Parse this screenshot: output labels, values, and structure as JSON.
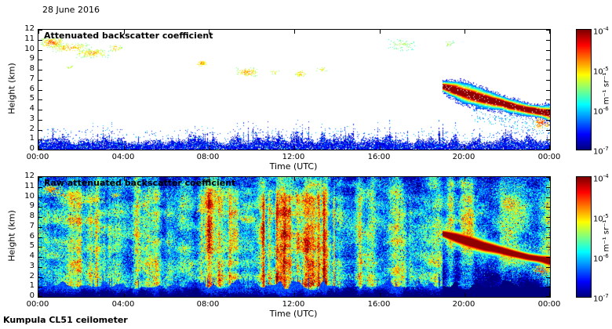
{
  "header": {
    "date": "28 June 2016"
  },
  "footer": {
    "label": "Kumpula CL51 ceilometer"
  },
  "colorbar": {
    "units": "m⁻¹ sr⁻¹",
    "exps": [
      -4,
      -5,
      -6,
      -7
    ],
    "scale": "log10",
    "range_log10": [
      -7,
      -4
    ]
  },
  "chart_data": [
    {
      "type": "heatmap",
      "panel": "top",
      "title": "Attenuated backscatter coefficient",
      "xlabel": "Time (UTC)",
      "ylabel": "Height (km)",
      "x_ticks": [
        "00:00",
        "04:00",
        "08:00",
        "12:00",
        "16:00",
        "20:00",
        "00:00"
      ],
      "y_ticks": [
        "0",
        "1",
        "2",
        "3",
        "4",
        "5",
        "6",
        "7",
        "8",
        "9",
        "10",
        "11",
        "12"
      ],
      "x_range_hours": [
        0,
        24
      ],
      "y_range_km": [
        0,
        12
      ],
      "value_range_log10": [
        -7,
        -4
      ],
      "background": "white",
      "boundary_layer": {
        "base_km": 0.75,
        "var_km": 1.1,
        "value_log10": [
          -6.8,
          -5.9
        ]
      },
      "clouds": [
        {
          "t0": 0.05,
          "t1": 1.2,
          "k0": 10.2,
          "k1": 11.3,
          "den": 0.6,
          "v0": -5.9,
          "v1": -4.4
        },
        {
          "t0": 0.4,
          "t1": 2.5,
          "k0": 9.7,
          "k1": 10.75,
          "den": 0.4,
          "v0": -5.9,
          "v1": -4.6
        },
        {
          "t0": 1.6,
          "t1": 3.35,
          "k0": 9.2,
          "k1": 10.2,
          "den": 0.35,
          "v0": -5.9,
          "v1": -4.7
        },
        {
          "t0": 3.3,
          "t1": 3.95,
          "k0": 9.8,
          "k1": 10.55,
          "den": 0.4,
          "v0": -5.8,
          "v1": -4.7
        },
        {
          "t0": 1.25,
          "t1": 1.7,
          "k0": 8.05,
          "k1": 8.5,
          "den": 0.35,
          "v0": -5.7,
          "v1": -5.0
        },
        {
          "t0": 7.35,
          "t1": 7.9,
          "k0": 8.3,
          "k1": 9.0,
          "den": 0.5,
          "v0": -5.6,
          "v1": -4.6
        },
        {
          "t0": 9.25,
          "t1": 10.35,
          "k0": 7.3,
          "k1": 8.3,
          "den": 0.45,
          "v0": -5.8,
          "v1": -4.6
        },
        {
          "t0": 10.85,
          "t1": 11.3,
          "k0": 7.5,
          "k1": 8.1,
          "den": 0.4,
          "v0": -5.7,
          "v1": -4.9
        },
        {
          "t0": 12.0,
          "t1": 12.55,
          "k0": 7.3,
          "k1": 8.0,
          "den": 0.45,
          "v0": -5.7,
          "v1": -4.7
        },
        {
          "t0": 13.0,
          "t1": 13.55,
          "k0": 7.75,
          "k1": 8.35,
          "den": 0.4,
          "v0": -5.8,
          "v1": -4.9
        },
        {
          "t0": 16.35,
          "t1": 17.75,
          "k0": 9.8,
          "k1": 11.25,
          "den": 0.2,
          "v0": -6.0,
          "v1": -5.2
        },
        {
          "t0": 19.0,
          "t1": 19.5,
          "k0": 10.3,
          "k1": 10.95,
          "den": 0.3,
          "v0": -5.9,
          "v1": -5.1
        },
        {
          "t0": 23.2,
          "t1": 24.0,
          "k0": 2.1,
          "k1": 3.3,
          "den": 0.55,
          "v0": -5.3,
          "v1": -4.4
        }
      ],
      "plume": {
        "hours": [
          18.95,
          19.6,
          20.2,
          20.9,
          21.6,
          22.3,
          23.0,
          23.6,
          24.01
        ],
        "center_km": [
          6.35,
          5.95,
          5.55,
          5.1,
          4.75,
          4.35,
          4.0,
          3.8,
          3.65
        ],
        "halfwidth_km": [
          0.55,
          0.95,
          1.05,
          0.95,
          0.8,
          0.7,
          0.65,
          0.7,
          0.9
        ],
        "peak_log10": -4.1
      }
    },
    {
      "type": "heatmap",
      "panel": "bottom",
      "title": "Raw attenuated backscatter coefficient",
      "xlabel": "Time (UTC)",
      "ylabel": "Height (km)",
      "x_ticks": [
        "00:00",
        "04:00",
        "08:00",
        "12:00",
        "16:00",
        "20:00",
        "00:00"
      ],
      "y_ticks": [
        "0",
        "1",
        "2",
        "3",
        "4",
        "5",
        "6",
        "7",
        "8",
        "9",
        "10",
        "11",
        "12"
      ],
      "x_range_hours": [
        0,
        24
      ],
      "y_range_km": [
        0,
        12
      ],
      "value_range_log10": [
        -7,
        -4
      ],
      "background": "noise",
      "noise": {
        "mean_log10": -5.8,
        "sd_log10": 0.5
      },
      "boundary_layer": {
        "base_km": 0.75,
        "var_km": 1.1,
        "value_log10": [
          -7.0,
          -6.2
        ]
      },
      "streak_regions": [
        [
          1.8,
          3.5,
          0.55
        ],
        [
          4.5,
          5.2,
          0.35
        ],
        [
          7.6,
          9.5,
          0.95
        ],
        [
          10.2,
          13.9,
          1.05
        ],
        [
          15.0,
          15.7,
          0.4
        ],
        [
          16.6,
          18.4,
          0.55
        ]
      ],
      "clouds": [
        {
          "t0": 0.05,
          "t1": 1.2,
          "k0": 10.2,
          "k1": 11.3,
          "den": 0.6,
          "v0": -5.9,
          "v1": -4.4
        },
        {
          "t0": 0.4,
          "t1": 2.5,
          "k0": 9.7,
          "k1": 10.75,
          "den": 0.4,
          "v0": -5.9,
          "v1": -4.6
        },
        {
          "t0": 1.6,
          "t1": 3.35,
          "k0": 9.2,
          "k1": 10.2,
          "den": 0.35,
          "v0": -5.9,
          "v1": -4.7
        },
        {
          "t0": 3.3,
          "t1": 3.95,
          "k0": 9.8,
          "k1": 10.55,
          "den": 0.4,
          "v0": -5.8,
          "v1": -4.7
        },
        {
          "t0": 7.35,
          "t1": 7.9,
          "k0": 8.3,
          "k1": 9.0,
          "den": 0.5,
          "v0": -5.6,
          "v1": -4.6
        },
        {
          "t0": 9.25,
          "t1": 10.35,
          "k0": 7.3,
          "k1": 8.3,
          "den": 0.45,
          "v0": -5.8,
          "v1": -4.6
        },
        {
          "t0": 12.0,
          "t1": 12.55,
          "k0": 7.3,
          "k1": 8.0,
          "den": 0.45,
          "v0": -5.7,
          "v1": -4.7
        },
        {
          "t0": 23.2,
          "t1": 24.0,
          "k0": 2.1,
          "k1": 3.3,
          "den": 0.55,
          "v0": -5.3,
          "v1": -4.4
        }
      ],
      "plume": {
        "hours": [
          18.95,
          19.6,
          20.2,
          20.9,
          21.6,
          22.3,
          23.0,
          23.6,
          24.01
        ],
        "center_km": [
          6.35,
          5.95,
          5.55,
          5.1,
          4.75,
          4.35,
          4.0,
          3.8,
          3.65
        ],
        "halfwidth_km": [
          0.55,
          0.95,
          1.05,
          0.95,
          0.8,
          0.7,
          0.65,
          0.7,
          0.9
        ],
        "peak_log10": -4.1
      }
    }
  ]
}
